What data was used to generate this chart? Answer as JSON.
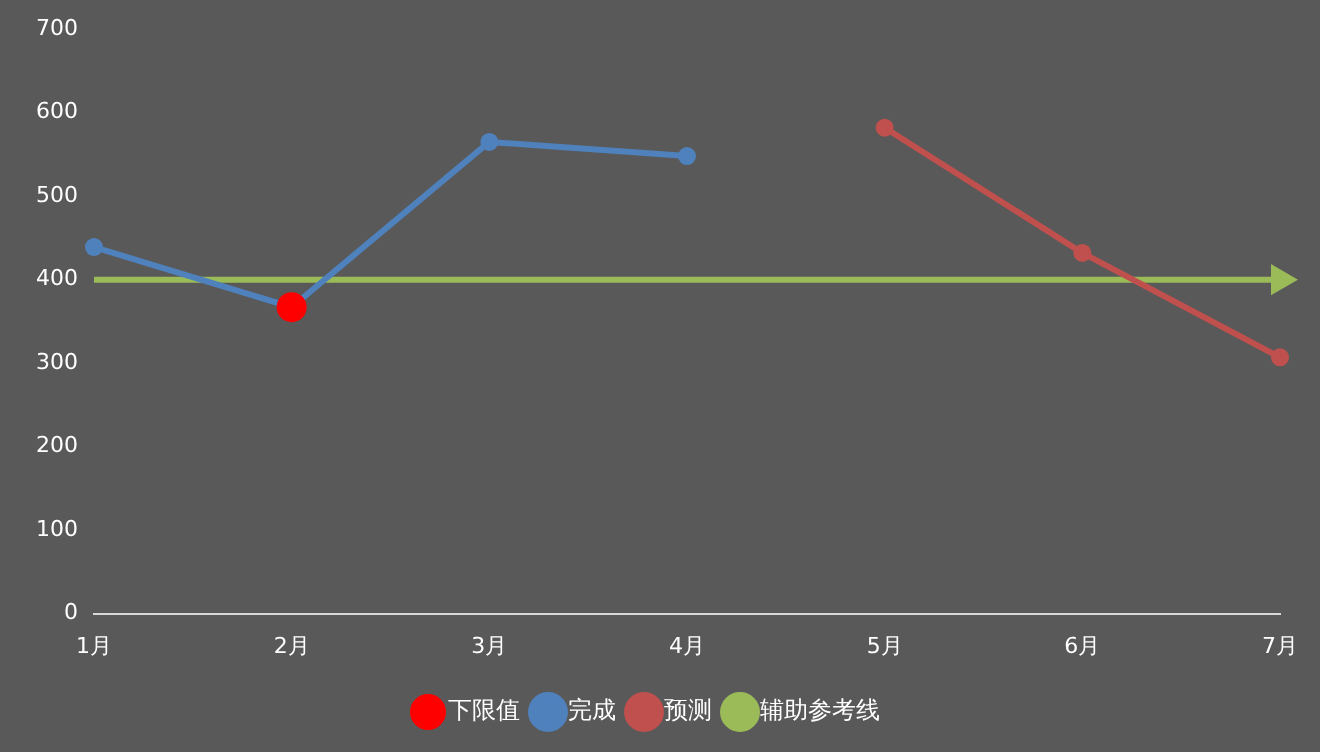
{
  "chart_data": {
    "type": "line",
    "categories": [
      "1月",
      "2月",
      "3月",
      "4月",
      "5月",
      "6月",
      "7月"
    ],
    "series": [
      {
        "name": "完成",
        "color": "#4f81bd",
        "values": [
          439,
          367,
          565,
          548,
          null,
          null,
          null
        ]
      },
      {
        "name": "预测",
        "color": "#c0504d",
        "values": [
          null,
          null,
          null,
          null,
          582,
          432,
          307
        ]
      },
      {
        "name": "辅助参考线",
        "color": "#9bbb59",
        "values": [
          400,
          400,
          400,
          400,
          400,
          400,
          400
        ],
        "marker": "none"
      },
      {
        "name": "下限值",
        "type": "scatter",
        "color": "#ff0000",
        "x": [
          "2月"
        ],
        "values": [
          367
        ]
      }
    ],
    "ylim": [
      0,
      700
    ],
    "yticks": [
      0,
      100,
      200,
      300,
      400,
      500,
      600,
      700
    ],
    "grid": false,
    "legend": "bottom",
    "marker": "circle",
    "line_style": "solid"
  }
}
